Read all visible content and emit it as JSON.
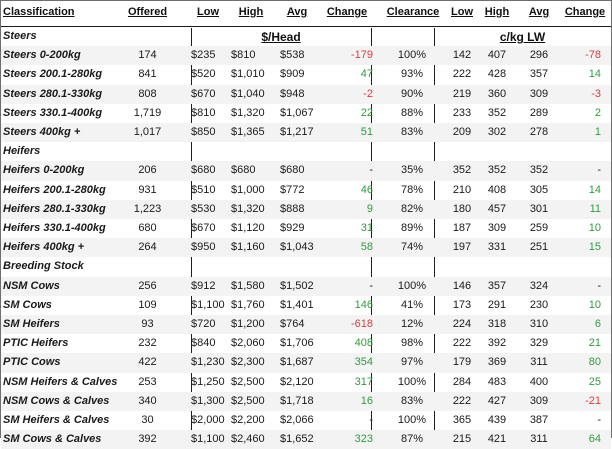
{
  "headers": {
    "classification": "Classification",
    "offered": "Offered",
    "low": "Low",
    "high": "High",
    "avg": "Avg",
    "change": "Change",
    "clearance": "Clearance",
    "c_low": "Low",
    "c_high": "High",
    "c_avg": "Avg",
    "c_change": "Change"
  },
  "units": {
    "head": "$/Head",
    "lw": "c/kg LW"
  },
  "rows": [
    {
      "section": "Steers"
    },
    {
      "label": "Steers 0-200kg",
      "offered": "174",
      "low": "$235",
      "high": "$810",
      "avg": "$538",
      "change": "-179",
      "change_dir": "neg",
      "clearance": "100%",
      "c_low": "142",
      "c_high": "407",
      "c_avg": "296",
      "c_change": "-78",
      "c_change_dir": "neg"
    },
    {
      "label": "Steers 200.1-280kg",
      "offered": "841",
      "low": "$520",
      "high": "$1,010",
      "avg": "$909",
      "change": "47",
      "change_dir": "pos",
      "clearance": "93%",
      "c_low": "222",
      "c_high": "428",
      "c_avg": "357",
      "c_change": "14",
      "c_change_dir": "pos"
    },
    {
      "label": "Steers 280.1-330kg",
      "offered": "808",
      "low": "$670",
      "high": "$1,040",
      "avg": "$948",
      "change": "-2",
      "change_dir": "neg",
      "clearance": "90%",
      "c_low": "219",
      "c_high": "360",
      "c_avg": "309",
      "c_change": "-3",
      "c_change_dir": "neg"
    },
    {
      "label": "Steers 330.1-400kg",
      "offered": "1,719",
      "low": "$810",
      "high": "$1,320",
      "avg": "$1,067",
      "change": "22",
      "change_dir": "pos",
      "clearance": "88%",
      "c_low": "233",
      "c_high": "352",
      "c_avg": "289",
      "c_change": "2",
      "c_change_dir": "pos"
    },
    {
      "label": "Steers 400kg +",
      "offered": "1,017",
      "low": "$850",
      "high": "$1,365",
      "avg": "$1,217",
      "change": "51",
      "change_dir": "pos",
      "clearance": "83%",
      "c_low": "209",
      "c_high": "302",
      "c_avg": "278",
      "c_change": "1",
      "c_change_dir": "pos"
    },
    {
      "section": "Heifers"
    },
    {
      "label": "Heifers 0-200kg",
      "offered": "206",
      "low": "$680",
      "high": "$680",
      "avg": "$680",
      "change": "-",
      "change_dir": "neu",
      "clearance": "35%",
      "c_low": "352",
      "c_high": "352",
      "c_avg": "352",
      "c_change": "-",
      "c_change_dir": "neu"
    },
    {
      "label": "Heifers 200.1-280kg",
      "offered": "931",
      "low": "$510",
      "high": "$1,000",
      "avg": "$772",
      "change": "46",
      "change_dir": "pos",
      "clearance": "78%",
      "c_low": "210",
      "c_high": "408",
      "c_avg": "305",
      "c_change": "14",
      "c_change_dir": "pos"
    },
    {
      "label": "Heifers 280.1-330kg",
      "offered": "1,223",
      "low": "$530",
      "high": "$1,320",
      "avg": "$888",
      "change": "9",
      "change_dir": "pos",
      "clearance": "82%",
      "c_low": "180",
      "c_high": "457",
      "c_avg": "301",
      "c_change": "11",
      "c_change_dir": "pos"
    },
    {
      "label": "Heifers 330.1-400kg",
      "offered": "680",
      "low": "$670",
      "high": "$1,120",
      "avg": "$929",
      "change": "31",
      "change_dir": "pos",
      "clearance": "89%",
      "c_low": "187",
      "c_high": "309",
      "c_avg": "259",
      "c_change": "10",
      "c_change_dir": "pos"
    },
    {
      "label": "Heifers 400kg +",
      "offered": "264",
      "low": "$950",
      "high": "$1,160",
      "avg": "$1,043",
      "change": "58",
      "change_dir": "pos",
      "clearance": "74%",
      "c_low": "197",
      "c_high": "331",
      "c_avg": "251",
      "c_change": "15",
      "c_change_dir": "pos"
    },
    {
      "section": "Breeding Stock"
    },
    {
      "label": "NSM Cows",
      "offered": "256",
      "low": "$912",
      "high": "$1,580",
      "avg": "$1,502",
      "change": "-",
      "change_dir": "neu",
      "clearance": "100%",
      "c_low": "146",
      "c_high": "357",
      "c_avg": "324",
      "c_change": "-",
      "c_change_dir": "neu"
    },
    {
      "label": "SM Cows",
      "offered": "109",
      "low": "$1,100",
      "high": "$1,760",
      "avg": "$1,401",
      "change": "146",
      "change_dir": "pos",
      "clearance": "41%",
      "c_low": "173",
      "c_high": "291",
      "c_avg": "230",
      "c_change": "10",
      "c_change_dir": "pos"
    },
    {
      "label": "SM Heifers",
      "offered": "93",
      "low": "$720",
      "high": "$1,200",
      "avg": "$764",
      "change": "-618",
      "change_dir": "neg",
      "clearance": "12%",
      "c_low": "224",
      "c_high": "318",
      "c_avg": "310",
      "c_change": "6",
      "c_change_dir": "pos"
    },
    {
      "label": "PTIC Heifers",
      "offered": "232",
      "low": "$840",
      "high": "$2,060",
      "avg": "$1,706",
      "change": "408",
      "change_dir": "pos",
      "clearance": "98%",
      "c_low": "222",
      "c_high": "392",
      "c_avg": "329",
      "c_change": "21",
      "c_change_dir": "pos"
    },
    {
      "label": "PTIC Cows",
      "offered": "422",
      "low": "$1,230",
      "high": "$2,300",
      "avg": "$1,687",
      "change": "354",
      "change_dir": "pos",
      "clearance": "97%",
      "c_low": "179",
      "c_high": "369",
      "c_avg": "311",
      "c_change": "80",
      "c_change_dir": "pos"
    },
    {
      "label": "NSM Heifers & Calves",
      "offered": "253",
      "low": "$1,250",
      "high": "$2,500",
      "avg": "$2,120",
      "change": "317",
      "change_dir": "pos",
      "clearance": "100%",
      "c_low": "284",
      "c_high": "483",
      "c_avg": "400",
      "c_change": "25",
      "c_change_dir": "pos"
    },
    {
      "label": "NSM Cows & Calves",
      "offered": "340",
      "low": "$1,300",
      "high": "$2,500",
      "avg": "$1,718",
      "change": "16",
      "change_dir": "pos",
      "clearance": "83%",
      "c_low": "222",
      "c_high": "427",
      "c_avg": "309",
      "c_change": "-21",
      "c_change_dir": "neg"
    },
    {
      "label": "SM Heifers & Calves",
      "offered": "30",
      "low": "$2,000",
      "high": "$2,200",
      "avg": "$2,066",
      "change": "-",
      "change_dir": "neu",
      "clearance": "100%",
      "c_low": "365",
      "c_high": "439",
      "c_avg": "387",
      "c_change": "-",
      "c_change_dir": "neu"
    },
    {
      "label": "SM Cows & Calves",
      "offered": "392",
      "low": "$1,100",
      "high": "$2,460",
      "avg": "$1,652",
      "change": "323",
      "change_dir": "pos",
      "clearance": "87%",
      "c_low": "215",
      "c_high": "421",
      "c_avg": "311",
      "c_change": "64",
      "c_change_dir": "pos"
    }
  ],
  "colors": {
    "positive": "#2e9e3c",
    "negative": "#e03a3a",
    "stripe": "#f3f3f3"
  }
}
